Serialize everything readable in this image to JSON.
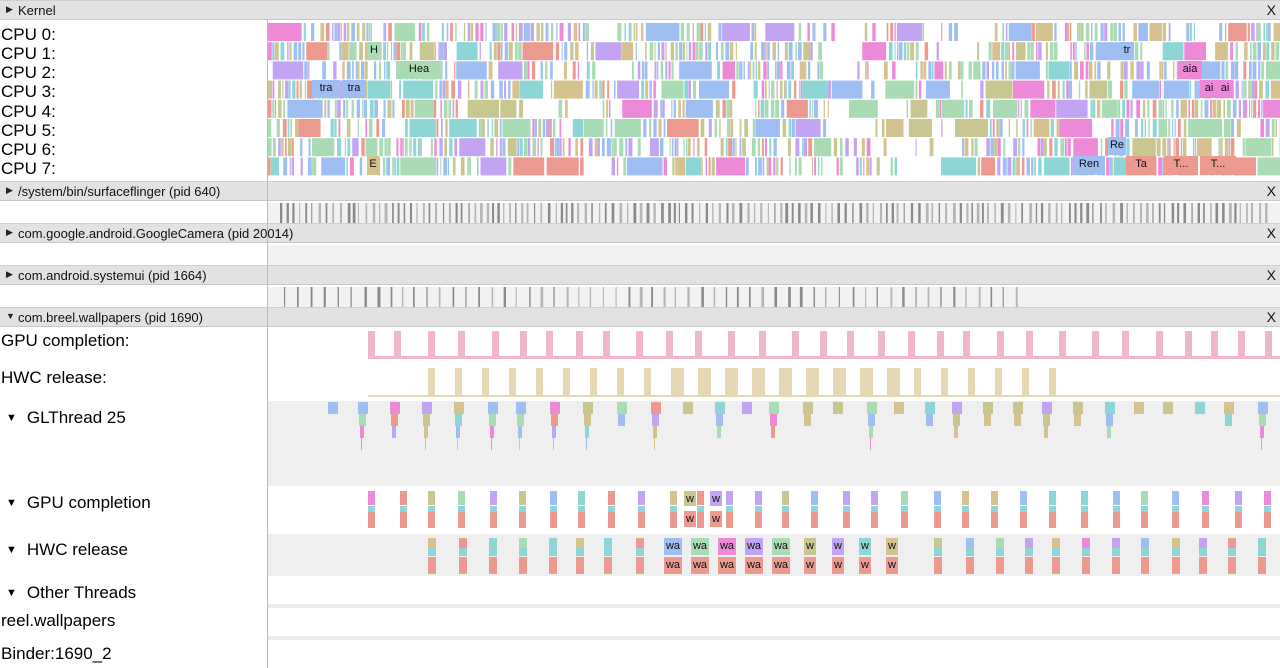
{
  "kernel": {
    "title": "Kernel",
    "close": "X",
    "cpus": [
      "CPU 0:",
      "CPU 1:",
      "CPU 2:",
      "CPU 3:",
      "CPU 4:",
      "CPU 5:",
      "CPU 6:",
      "CPU 7:"
    ]
  },
  "processes": [
    {
      "title": "/system/bin/surfaceflinger (pid 640)",
      "close": "X"
    },
    {
      "title": "com.google.android.GoogleCamera (pid 20014)",
      "close": "X"
    },
    {
      "title": "com.android.systemui (pid 1664)",
      "close": "X"
    },
    {
      "title": "com.breel.wallpapers (pid 1690)",
      "close": "X"
    }
  ],
  "wallpapers": {
    "tracks": {
      "gpu_completion": "GPU completion:",
      "hwc_release": "HWC release:",
      "glthread": "GLThread 25",
      "gpu_completion_group": "GPU completion",
      "hwc_release_group": "HWC release",
      "other_threads": "Other Threads",
      "reel": "reel.wallpapers",
      "binder": "Binder:1690_2"
    }
  },
  "slice_labels": {
    "cpu1_h": "H",
    "cpu1_tr": "tr",
    "cpu2_hea": "Hea",
    "cpu2_aia": "aia",
    "cpu3_tra1": "tra",
    "cpu3_tra2": "tra",
    "cpu3_ai1": "ai",
    "cpu3_ai2": "ai",
    "cpu6_re": "Re",
    "cpu7_e": "E",
    "cpu7_ren": "Ren",
    "cpu7_ta": "Ta",
    "cpu7_t1": "T...",
    "cpu7_t2": "T...",
    "gpu_w1": "w",
    "gpu_w2": "w",
    "gpu_w3": "w",
    "gpu_w4": "w",
    "hwc_top": [
      "wa",
      "wa",
      "wa",
      "wa",
      "wa",
      "w",
      "w",
      "w",
      "w"
    ],
    "hwc_bot": [
      "wa",
      "wa",
      "wa",
      "wa",
      "wa",
      "w",
      "w",
      "w",
      "w"
    ]
  },
  "colors": {
    "header_bg": "#e2e2e2",
    "gpu_pink": "#f0b6ce",
    "hwc_tan": "#e6d7b4",
    "blue": "#9fbff2",
    "green": "#a9dcb4",
    "pink": "#ec8ad8",
    "salmon": "#ec9a90",
    "purple": "#c3a4f2",
    "olive": "#c9c791",
    "tan": "#d6c28e",
    "teal": "#8ed6d6"
  }
}
